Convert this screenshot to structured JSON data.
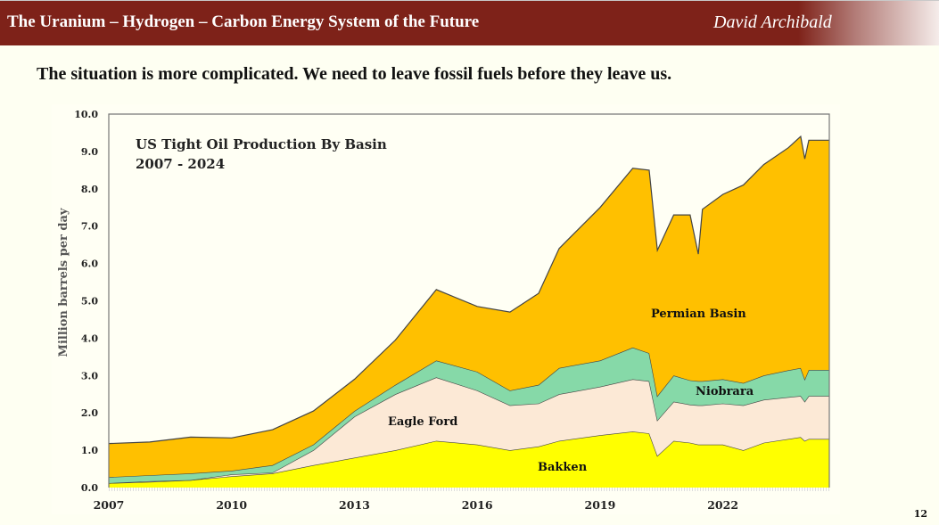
{
  "header": {
    "title": "The Uranium – Hydrogen – Carbon Energy System of the Future",
    "author": "David Archibald"
  },
  "subtitle": "The situation is more complicated. We need to leave fossil fuels before they leave us.",
  "page_number": "12",
  "colors": {
    "header_bg": "#7e2219",
    "page_bg": "#fefff2",
    "bakken": "#ffff00",
    "eagle_ford": "#fce9d6",
    "niobrara": "#86d9a8",
    "permian": "#ffc000"
  },
  "chart_data": {
    "type": "area",
    "stacked": true,
    "title": "US Tight Oil Production By Basin",
    "subtitle": "2007 - 2024",
    "xlabel": "",
    "ylabel": "Million barrels per day",
    "xlim": [
      2007,
      2024.6
    ],
    "ylim": [
      0,
      10
    ],
    "yticks": [
      "0.0",
      "1.0",
      "2.0",
      "3.0",
      "4.0",
      "5.0",
      "6.0",
      "7.0",
      "8.0",
      "9.0",
      "10.0"
    ],
    "xticks": [
      "2007",
      "2010",
      "2013",
      "2016",
      "2019",
      "2022"
    ],
    "grid": false,
    "legend": "inline labels",
    "x": [
      2007,
      2008,
      2009,
      2010,
      2011,
      2012,
      2013,
      2014,
      2015,
      2016,
      2016.8,
      2017.5,
      2018,
      2019,
      2019.8,
      2020.2,
      2020.4,
      2020.8,
      2021.2,
      2021.4,
      2021.5,
      2022,
      2022.5,
      2023,
      2023.6,
      2023.9,
      2024.0,
      2024.1,
      2024.6
    ],
    "series": [
      {
        "name": "Bakken",
        "label": "Bakken",
        "values": [
          0.12,
          0.15,
          0.2,
          0.3,
          0.38,
          0.6,
          0.8,
          1.0,
          1.25,
          1.15,
          1.0,
          1.1,
          1.25,
          1.4,
          1.5,
          1.45,
          0.85,
          1.25,
          1.2,
          1.15,
          1.15,
          1.15,
          1.0,
          1.2,
          1.3,
          1.35,
          1.25,
          1.3,
          1.3
        ]
      },
      {
        "name": "Eagle Ford",
        "label": "Eagle Ford",
        "values": [
          0.0,
          0.02,
          0.0,
          0.05,
          0.02,
          0.4,
          1.1,
          1.5,
          1.7,
          1.45,
          1.2,
          1.15,
          1.25,
          1.3,
          1.4,
          1.4,
          0.95,
          1.05,
          1.02,
          1.05,
          1.05,
          1.1,
          1.2,
          1.15,
          1.12,
          1.1,
          1.05,
          1.15,
          1.15
        ]
      },
      {
        "name": "Niobrara",
        "label": "Niobrara",
        "values": [
          0.16,
          0.16,
          0.18,
          0.1,
          0.2,
          0.15,
          0.15,
          0.25,
          0.45,
          0.5,
          0.4,
          0.5,
          0.7,
          0.7,
          0.85,
          0.75,
          0.65,
          0.7,
          0.65,
          0.65,
          0.65,
          0.65,
          0.6,
          0.65,
          0.72,
          0.75,
          0.6,
          0.7,
          0.7
        ]
      },
      {
        "name": "Permian Basin",
        "label": "Permian Basin",
        "values": [
          0.9,
          0.89,
          0.97,
          0.88,
          0.95,
          0.9,
          0.85,
          1.2,
          1.9,
          1.75,
          2.1,
          2.45,
          3.2,
          4.1,
          4.8,
          4.9,
          3.9,
          4.3,
          4.43,
          3.4,
          4.6,
          4.95,
          5.3,
          5.65,
          5.96,
          6.2,
          5.9,
          6.15,
          6.15
        ]
      }
    ]
  }
}
